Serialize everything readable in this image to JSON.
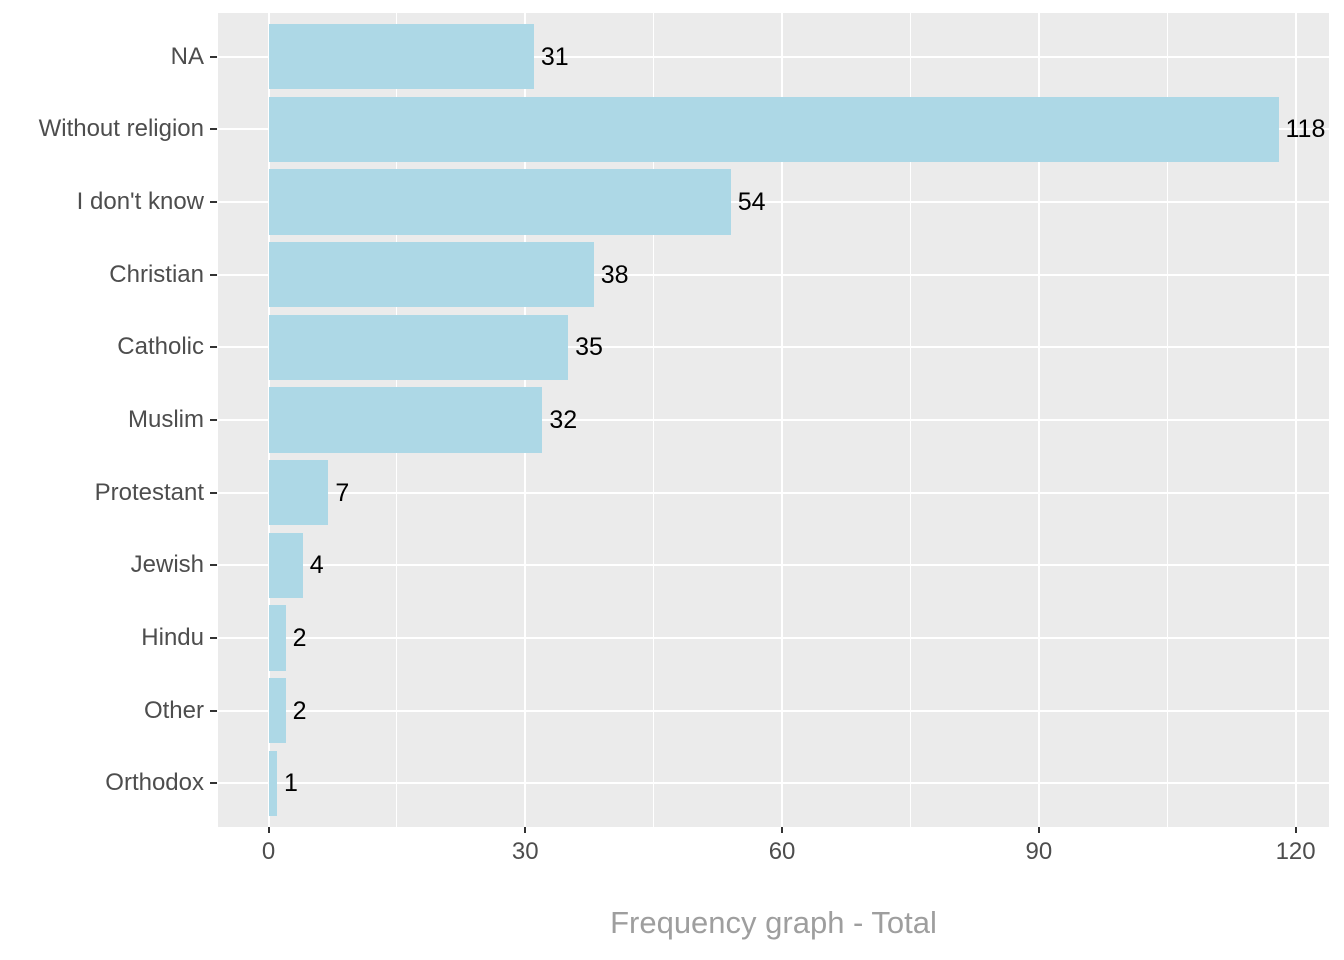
{
  "chart_data": {
    "type": "bar",
    "orientation": "horizontal",
    "xlabel": "Frequency graph - Total",
    "ylabel": "",
    "categories": [
      "NA",
      "Without religion",
      "I don't know",
      "Christian",
      "Catholic",
      "Muslim",
      "Protestant",
      "Jewish",
      "Hindu",
      "Other",
      "Orthodox"
    ],
    "values": [
      31,
      118,
      54,
      38,
      35,
      32,
      7,
      4,
      2,
      2,
      1
    ],
    "bar_value_labels": [
      "31",
      "118",
      "54",
      "38",
      "35",
      "32",
      "7",
      "4",
      "2",
      "2",
      "1"
    ],
    "x_ticks": [
      0,
      30,
      60,
      90,
      120
    ],
    "x_tick_labels": [
      "0",
      "30",
      "60",
      "90",
      "120"
    ],
    "x_minor_ticks": [
      15,
      45,
      75,
      105
    ],
    "xlim": [
      -5.9,
      123.9
    ],
    "grid": true,
    "legend": false,
    "colors": {
      "bar_fill": "#ADD8E6",
      "panel_background": "#EBEBEB",
      "gridline": "#FFFFFF",
      "axis_text": "#4D4D4D",
      "axis_tick": "#333333",
      "value_label": "#000000",
      "axis_title": "#9E9E9E",
      "figure_background": "#FFFFFF"
    }
  }
}
